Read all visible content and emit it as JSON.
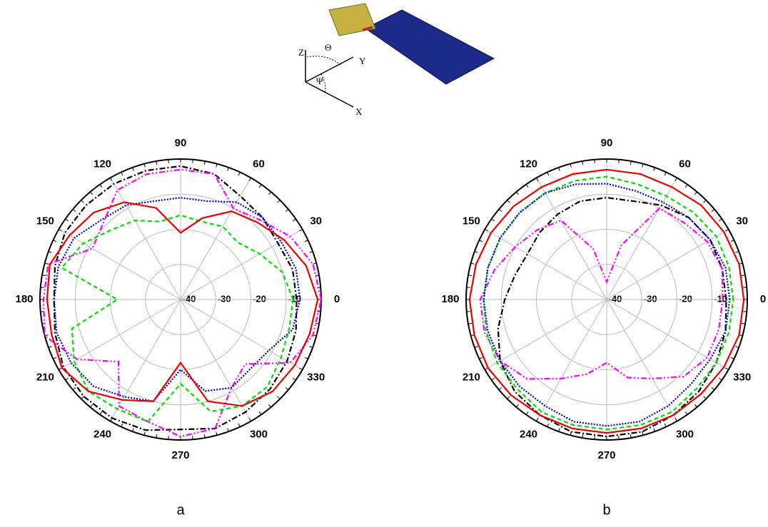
{
  "figure": {
    "axis_labels": [
      "Z",
      "Θ",
      "Y",
      "Ψ",
      "X"
    ]
  },
  "chart_data": [
    {
      "type": "polar",
      "caption": "a",
      "x": [
        0,
        15,
        30,
        45,
        60,
        75,
        90,
        105,
        120,
        135,
        150,
        165,
        180,
        195,
        210,
        225,
        240,
        255,
        270,
        285,
        300,
        315,
        330,
        345
      ],
      "xticks": [
        0,
        30,
        60,
        90,
        120,
        150,
        180,
        210,
        240,
        270,
        300,
        330
      ],
      "rlim": [
        -40,
        0
      ],
      "rticks": [
        -40,
        -30,
        -20,
        -10
      ],
      "grid": true,
      "series": [
        {
          "color": "#000000",
          "style": "dashdot",
          "values": [
            -7,
            -7,
            -8,
            -7,
            -6,
            -3,
            -2,
            -2,
            -2,
            -2,
            -2,
            -3,
            -4,
            -3,
            -1.5,
            -1,
            -1,
            -1.5,
            -3,
            -2,
            -3,
            -4,
            -5,
            -6
          ]
        },
        {
          "color": "#ff00ff",
          "style": "dashdotdot",
          "values": [
            0,
            -1,
            -4,
            -8,
            -10,
            -3,
            -3,
            -3,
            -4,
            -9,
            -11,
            -1,
            -1,
            0,
            -6,
            -15,
            -5,
            -4,
            -1,
            -2,
            -11,
            -14,
            -4,
            -1
          ]
        },
        {
          "color": "#00dd00",
          "style": "dash",
          "values": [
            -8,
            -10,
            -14,
            -17,
            -16,
            -17,
            -16,
            -17,
            -14,
            -12,
            -8,
            -5,
            -22,
            -8,
            -5,
            -3,
            -4,
            -4,
            -16,
            -7,
            -5,
            -5,
            -7,
            -8
          ]
        },
        {
          "color": "#0000cc",
          "style": "dot",
          "values": [
            -6,
            -6,
            -7,
            -7,
            -8,
            -11,
            -11,
            -11,
            -9,
            -8,
            -5,
            -4,
            -4,
            -3.5,
            -4,
            -5,
            -8,
            -10,
            -20,
            -13,
            -11,
            -12,
            -11,
            -7
          ]
        },
        {
          "color": "#ee0000",
          "style": "solid",
          "values": [
            -1,
            -3,
            -6,
            -9,
            -11,
            -16,
            -21,
            -13,
            -8,
            -5,
            -3.5,
            -1.5,
            -2,
            -2,
            -1,
            -3,
            -7,
            -10,
            -22,
            -10,
            -5,
            -3,
            -2.5,
            -2
          ]
        }
      ]
    },
    {
      "type": "polar",
      "caption": "b",
      "x": [
        0,
        15,
        30,
        45,
        60,
        75,
        90,
        105,
        120,
        135,
        150,
        165,
        180,
        195,
        210,
        225,
        240,
        255,
        270,
        285,
        300,
        315,
        330,
        345
      ],
      "xticks": [
        0,
        30,
        60,
        90,
        120,
        150,
        180,
        210,
        240,
        270,
        300,
        330
      ],
      "rlim": [
        -40,
        0
      ],
      "rticks": [
        -40,
        -30,
        -20,
        -10
      ],
      "grid": true,
      "series": [
        {
          "color": "#000000",
          "style": "dashdot",
          "values": [
            -6,
            -6,
            -6,
            -7,
            -9,
            -11,
            -11,
            -11,
            -12,
            -13,
            -14,
            -13,
            -11,
            -8,
            -5,
            -3,
            -2,
            -1,
            -1,
            -1,
            -2,
            -3,
            -4,
            -5
          ]
        },
        {
          "color": "#ff00ff",
          "style": "dashdotdot",
          "values": [
            -7,
            -6,
            -7,
            -9,
            -10,
            -24,
            -35,
            -25,
            -14,
            -12,
            -10,
            -7,
            -4,
            -4,
            -5,
            -8,
            -14,
            -18,
            -22,
            -17,
            -14,
            -9,
            -7,
            -7
          ]
        },
        {
          "color": "#00dd00",
          "style": "dash",
          "values": [
            -4,
            -4,
            -4,
            -5,
            -6,
            -6,
            -5,
            -5,
            -5,
            -5,
            -5,
            -5,
            -5,
            -4.5,
            -4,
            -4,
            -3,
            -3,
            -3,
            -3,
            -3,
            -4,
            -4,
            -4
          ]
        },
        {
          "color": "#0000cc",
          "style": "dot",
          "values": [
            -5,
            -5,
            -6,
            -7,
            -8,
            -8,
            -7,
            -6,
            -5,
            -5,
            -5,
            -5,
            -5,
            -5,
            -5,
            -5,
            -5,
            -4,
            -4,
            -4,
            -5,
            -6,
            -6,
            -5
          ]
        },
        {
          "color": "#ee0000",
          "style": "solid",
          "values": [
            -1,
            -1,
            -1.5,
            -2,
            -3,
            -3,
            -3,
            -3,
            -3,
            -2.5,
            -2,
            -1.5,
            -1,
            -1,
            -1,
            -1.5,
            -2,
            -2,
            -2,
            -2,
            -2,
            -2,
            -1.5,
            -1
          ]
        }
      ]
    }
  ]
}
